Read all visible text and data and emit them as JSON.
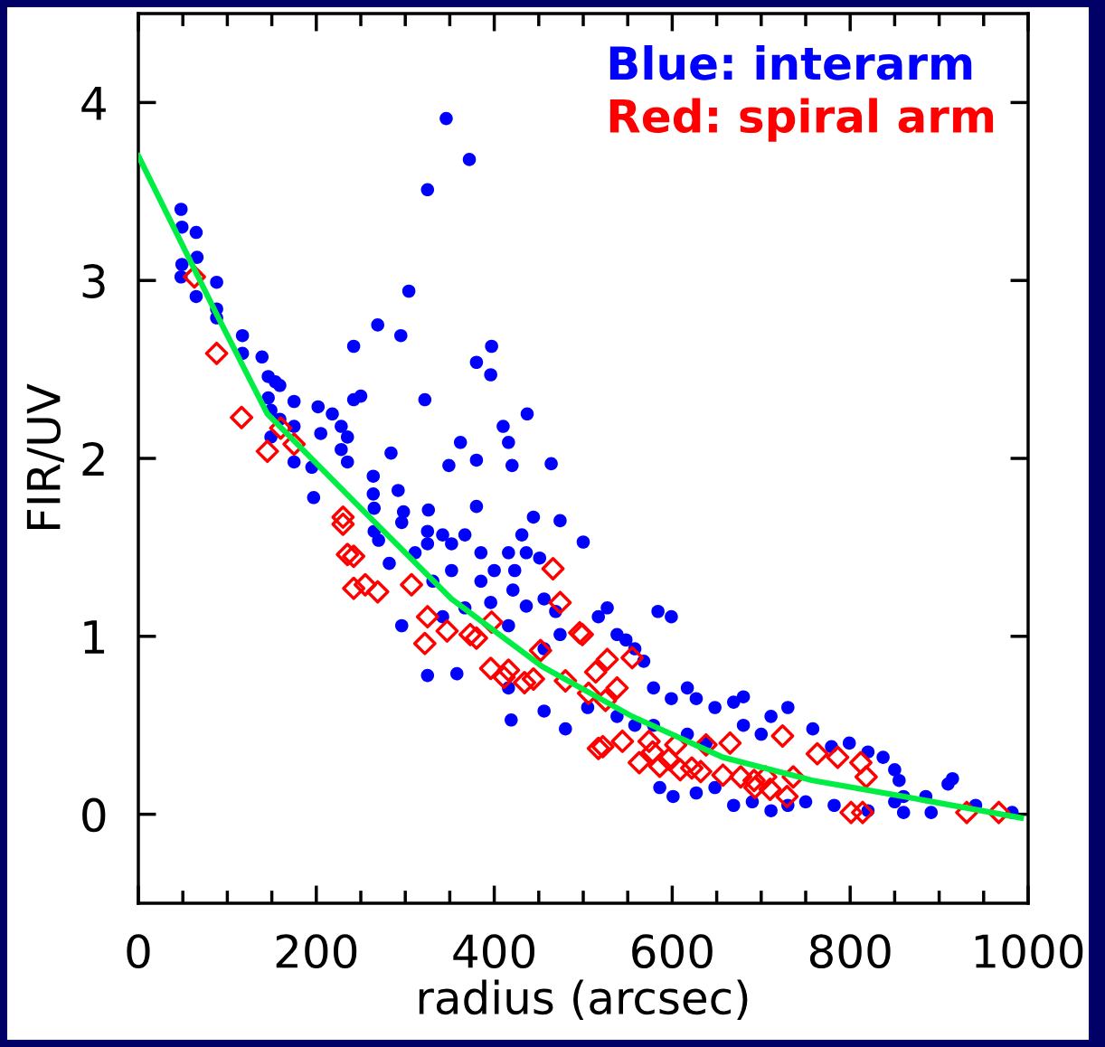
{
  "chart_data": {
    "type": "scatter",
    "xlabel": "radius (arcsec)",
    "ylabel": "FIR/UV",
    "xlim": [
      0,
      1000
    ],
    "ylim": [
      -0.5,
      4.5
    ],
    "xticks": [
      0,
      {
        "value": 50,
        "label": null
      },
      {
        "value": 100,
        "label": null
      },
      {
        "value": 150,
        "label": null
      },
      200,
      {
        "value": 250,
        "label": null
      },
      {
        "value": 300,
        "label": null
      },
      {
        "value": 350,
        "label": null
      },
      400,
      {
        "value": 450,
        "label": null
      },
      {
        "value": 500,
        "label": null
      },
      {
        "value": 550,
        "label": null
      },
      600,
      {
        "value": 650,
        "label": null
      },
      {
        "value": 700,
        "label": null
      },
      {
        "value": 750,
        "label": null
      },
      800,
      {
        "value": 850,
        "label": null
      },
      {
        "value": 900,
        "label": null
      },
      {
        "value": 950,
        "label": null
      },
      1000
    ],
    "yticks": [
      0,
      1,
      2,
      3,
      4
    ],
    "grid": false,
    "legend": "top right",
    "series": [
      {
        "name": "Blue: interarm",
        "color": "#0000ff",
        "marker": "circle",
        "x": [
          48,
          49,
          65,
          66,
          49,
          48,
          65,
          88,
          88,
          88,
          117,
          117,
          139,
          146,
          154,
          159,
          146,
          149,
          159,
          149,
          175,
          175,
          175,
          195,
          202,
          205,
          197,
          218,
          228,
          228,
          235,
          235,
          242,
          250,
          242,
          269,
          295,
          304,
          322,
          325,
          346,
          372,
          380,
          397,
          396,
          410,
          416,
          437,
          362,
          380,
          349,
          420,
          464,
          380,
          326,
          298,
          264,
          264,
          265,
          265,
          270,
          292,
          296,
          284,
          311,
          282,
          325,
          325,
          342,
          352,
          352,
          331,
          367,
          385,
          385,
          400,
          416,
          423,
          431,
          436,
          444,
          451,
          474,
          500,
          421,
          436,
          456,
          469,
          416,
          396,
          367,
          342,
          296,
          325,
          358,
          416,
          419,
          456,
          480,
          456,
          474,
          517,
          527,
          538,
          548,
          558,
          568,
          584,
          599,
          579,
          599,
          617,
          627,
          648,
          669,
          680,
          711,
          730,
          505,
          538,
          558,
          579,
          617,
          638,
          680,
          700,
          758,
          779,
          799,
          820,
          837,
          850,
          855,
          860,
          885,
          910,
          915,
          586,
          601,
          627,
          648,
          669,
          690,
          711,
          730,
          750,
          782,
          820,
          850,
          860,
          891,
          982,
          941
        ],
        "values": [
          3.4,
          3.3,
          3.27,
          3.13,
          3.09,
          3.02,
          2.91,
          2.99,
          2.84,
          2.79,
          2.69,
          2.59,
          2.57,
          2.46,
          2.43,
          2.41,
          2.34,
          2.27,
          2.22,
          2.12,
          2.32,
          2.18,
          1.98,
          1.95,
          2.29,
          2.14,
          1.78,
          2.25,
          2.18,
          2.05,
          2.12,
          1.98,
          2.33,
          2.35,
          2.63,
          2.75,
          2.69,
          2.94,
          2.33,
          3.51,
          3.91,
          3.68,
          2.54,
          2.63,
          2.47,
          2.18,
          2.09,
          2.25,
          2.09,
          1.99,
          1.96,
          1.96,
          1.97,
          1.73,
          1.71,
          1.7,
          1.9,
          1.8,
          1.72,
          1.59,
          1.54,
          1.82,
          1.64,
          2.03,
          1.47,
          1.41,
          1.59,
          1.52,
          1.57,
          1.52,
          1.37,
          1.31,
          1.57,
          1.47,
          1.31,
          1.37,
          1.47,
          1.37,
          1.57,
          1.47,
          1.67,
          1.44,
          1.65,
          1.53,
          1.26,
          1.17,
          1.21,
          1.14,
          1.06,
          1.19,
          1.16,
          1.11,
          1.06,
          0.78,
          0.79,
          0.71,
          0.53,
          0.58,
          0.48,
          0.93,
          1.01,
          1.11,
          1.16,
          1.01,
          0.98,
          0.93,
          0.86,
          1.14,
          1.11,
          0.71,
          0.65,
          0.71,
          0.65,
          0.6,
          0.63,
          0.66,
          0.55,
          0.6,
          0.6,
          0.55,
          0.5,
          0.5,
          0.45,
          0.4,
          0.5,
          0.45,
          0.48,
          0.38,
          0.4,
          0.35,
          0.32,
          0.25,
          0.19,
          0.1,
          0.1,
          0.17,
          0.2,
          0.15,
          0.1,
          0.12,
          0.15,
          0.05,
          0.07,
          0.02,
          0.05,
          0.07,
          0.05,
          0.02,
          0.07,
          0.01,
          0.01,
          0.01,
          0.05
        ]
      },
      {
        "name": "Red: spiral arm",
        "color": "#ff0000",
        "marker": "diamond",
        "x": [
          63,
          88,
          116,
          145,
          160,
          175,
          230,
          230,
          235,
          242,
          242,
          255,
          269,
          307,
          325,
          322,
          347,
          373,
          380,
          397,
          396,
          411,
          416,
          434,
          444,
          452,
          466,
          474,
          480,
          496,
          499,
          506,
          514,
          517,
          522,
          525,
          527,
          538,
          544,
          555,
          563,
          574,
          578,
          586,
          596,
          604,
          609,
          622,
          632,
          638,
          665,
          657,
          677,
          692,
          693,
          705,
          710,
          724,
          729,
          736,
          763,
          786,
          812,
          818,
          801,
          814,
          931,
          967
        ],
        "values": [
          3.02,
          2.59,
          2.23,
          2.04,
          2.17,
          2.08,
          1.67,
          1.63,
          1.46,
          1.45,
          1.27,
          1.29,
          1.25,
          1.29,
          1.11,
          0.96,
          1.03,
          1.01,
          0.99,
          1.08,
          0.82,
          0.77,
          0.81,
          0.74,
          0.76,
          0.92,
          1.38,
          1.19,
          0.75,
          1.02,
          1.01,
          0.68,
          0.8,
          0.37,
          0.38,
          0.64,
          0.87,
          0.71,
          0.41,
          0.88,
          0.29,
          0.41,
          0.35,
          0.27,
          0.31,
          0.39,
          0.25,
          0.26,
          0.24,
          0.39,
          0.4,
          0.22,
          0.21,
          0.19,
          0.15,
          0.21,
          0.14,
          0.44,
          0.1,
          0.21,
          0.34,
          0.32,
          0.29,
          0.21,
          0.01,
          0.01,
          0.01,
          0.01
        ]
      },
      {
        "type": "line",
        "color": "#00ee44",
        "marker": "none",
        "line_style": "solid",
        "x": [
          0,
          88,
          145,
          250,
          352,
          454,
          555,
          657,
          758,
          860,
          992
        ],
        "values": [
          3.7,
          2.81,
          2.25,
          1.72,
          1.21,
          0.83,
          0.55,
          0.32,
          0.19,
          0.1,
          -0.02
        ]
      }
    ]
  }
}
